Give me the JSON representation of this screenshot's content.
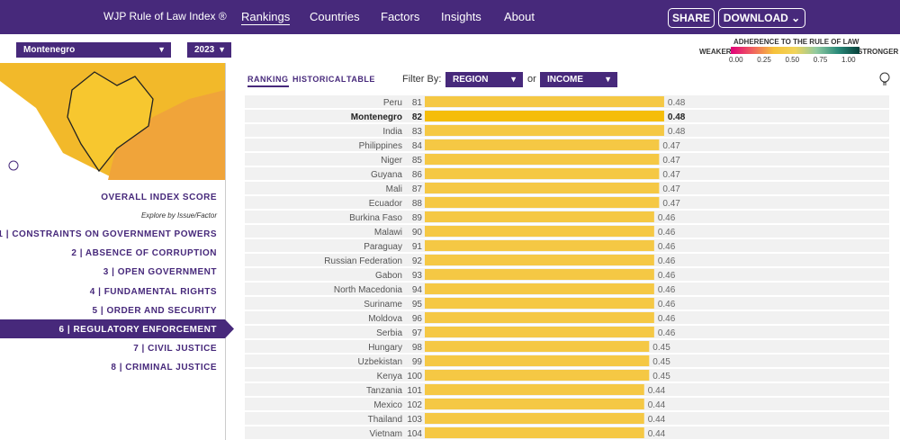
{
  "header": {
    "logo": "WJP Rule of Law Index ®",
    "nav": [
      "Rankings",
      "Countries",
      "Factors",
      "Insights",
      "About"
    ],
    "share": "SHARE",
    "download": "DOWNLOAD"
  },
  "selectors": {
    "country": "Montenegro",
    "year": "2023"
  },
  "legend": {
    "title": "ADHERENCE TO THE RULE OF LAW",
    "weaker": "WEAKER",
    "stronger": "STRONGER",
    "ticks": [
      {
        "value": 0,
        "label": "0.00"
      },
      {
        "value": 0.25,
        "label": "0.25"
      },
      {
        "value": 0.5,
        "label": "0.50"
      },
      {
        "value": 0.75,
        "label": "0.75"
      },
      {
        "value": 1,
        "label": "1.00"
      }
    ]
  },
  "menu": {
    "overall": "OVERALL INDEX SCORE",
    "explore": "Explore by Issue/Factor",
    "items": [
      {
        "label": "1 | CONSTRAINTS ON GOVERNMENT POWERS"
      },
      {
        "label": "2 | ABSENCE OF CORRUPTION"
      },
      {
        "label": "3 | OPEN GOVERNMENT"
      },
      {
        "label": "4 | FUNDAMENTAL RIGHTS"
      },
      {
        "label": "5 | ORDER AND SECURITY"
      },
      {
        "label": "6 | REGULATORY ENFORCEMENT",
        "active": true
      },
      {
        "label": "7 | CIVIL JUSTICE"
      },
      {
        "label": "8 | CRIMINAL JUSTICE"
      }
    ]
  },
  "toolbar": {
    "tabs": [
      "RANKING",
      "HISTORICAL",
      "TABLE"
    ],
    "filter_by": "Filter By:",
    "region": "REGION",
    "or": "or",
    "income": "INCOME"
  },
  "ranking": {
    "rows": [
      {
        "country": "Peru",
        "rank": 81,
        "score": 0.48
      },
      {
        "country": "Montenegro",
        "rank": 82,
        "score": 0.48
      },
      {
        "country": "India",
        "rank": 83,
        "score": 0.48
      },
      {
        "country": "Philippines",
        "rank": 84,
        "score": 0.47
      },
      {
        "country": "Niger",
        "rank": 85,
        "score": 0.47
      },
      {
        "country": "Guyana",
        "rank": 86,
        "score": 0.47
      },
      {
        "country": "Mali",
        "rank": 87,
        "score": 0.47
      },
      {
        "country": "Ecuador",
        "rank": 88,
        "score": 0.47
      },
      {
        "country": "Burkina Faso",
        "rank": 89,
        "score": 0.46
      },
      {
        "country": "Malawi",
        "rank": 90,
        "score": 0.46
      },
      {
        "country": "Paraguay",
        "rank": 91,
        "score": 0.46
      },
      {
        "country": "Russian Federation",
        "rank": 92,
        "score": 0.46
      },
      {
        "country": "Gabon",
        "rank": 93,
        "score": 0.46
      },
      {
        "country": "North Macedonia",
        "rank": 94,
        "score": 0.46
      },
      {
        "country": "Suriname",
        "rank": 95,
        "score": 0.46
      },
      {
        "country": "Moldova",
        "rank": 96,
        "score": 0.46
      },
      {
        "country": "Serbia",
        "rank": 97,
        "score": 0.46
      },
      {
        "country": "Hungary",
        "rank": 98,
        "score": 0.45
      },
      {
        "country": "Uzbekistan",
        "rank": 99,
        "score": 0.45
      },
      {
        "country": "Kenya",
        "rank": 100,
        "score": 0.45
      },
      {
        "country": "Tanzania",
        "rank": 101,
        "score": 0.44
      },
      {
        "country": "Mexico",
        "rank": 102,
        "score": 0.44
      },
      {
        "country": "Thailand",
        "rank": 103,
        "score": 0.44
      },
      {
        "country": "Vietnam",
        "rank": 104,
        "score": 0.44
      }
    ]
  }
}
